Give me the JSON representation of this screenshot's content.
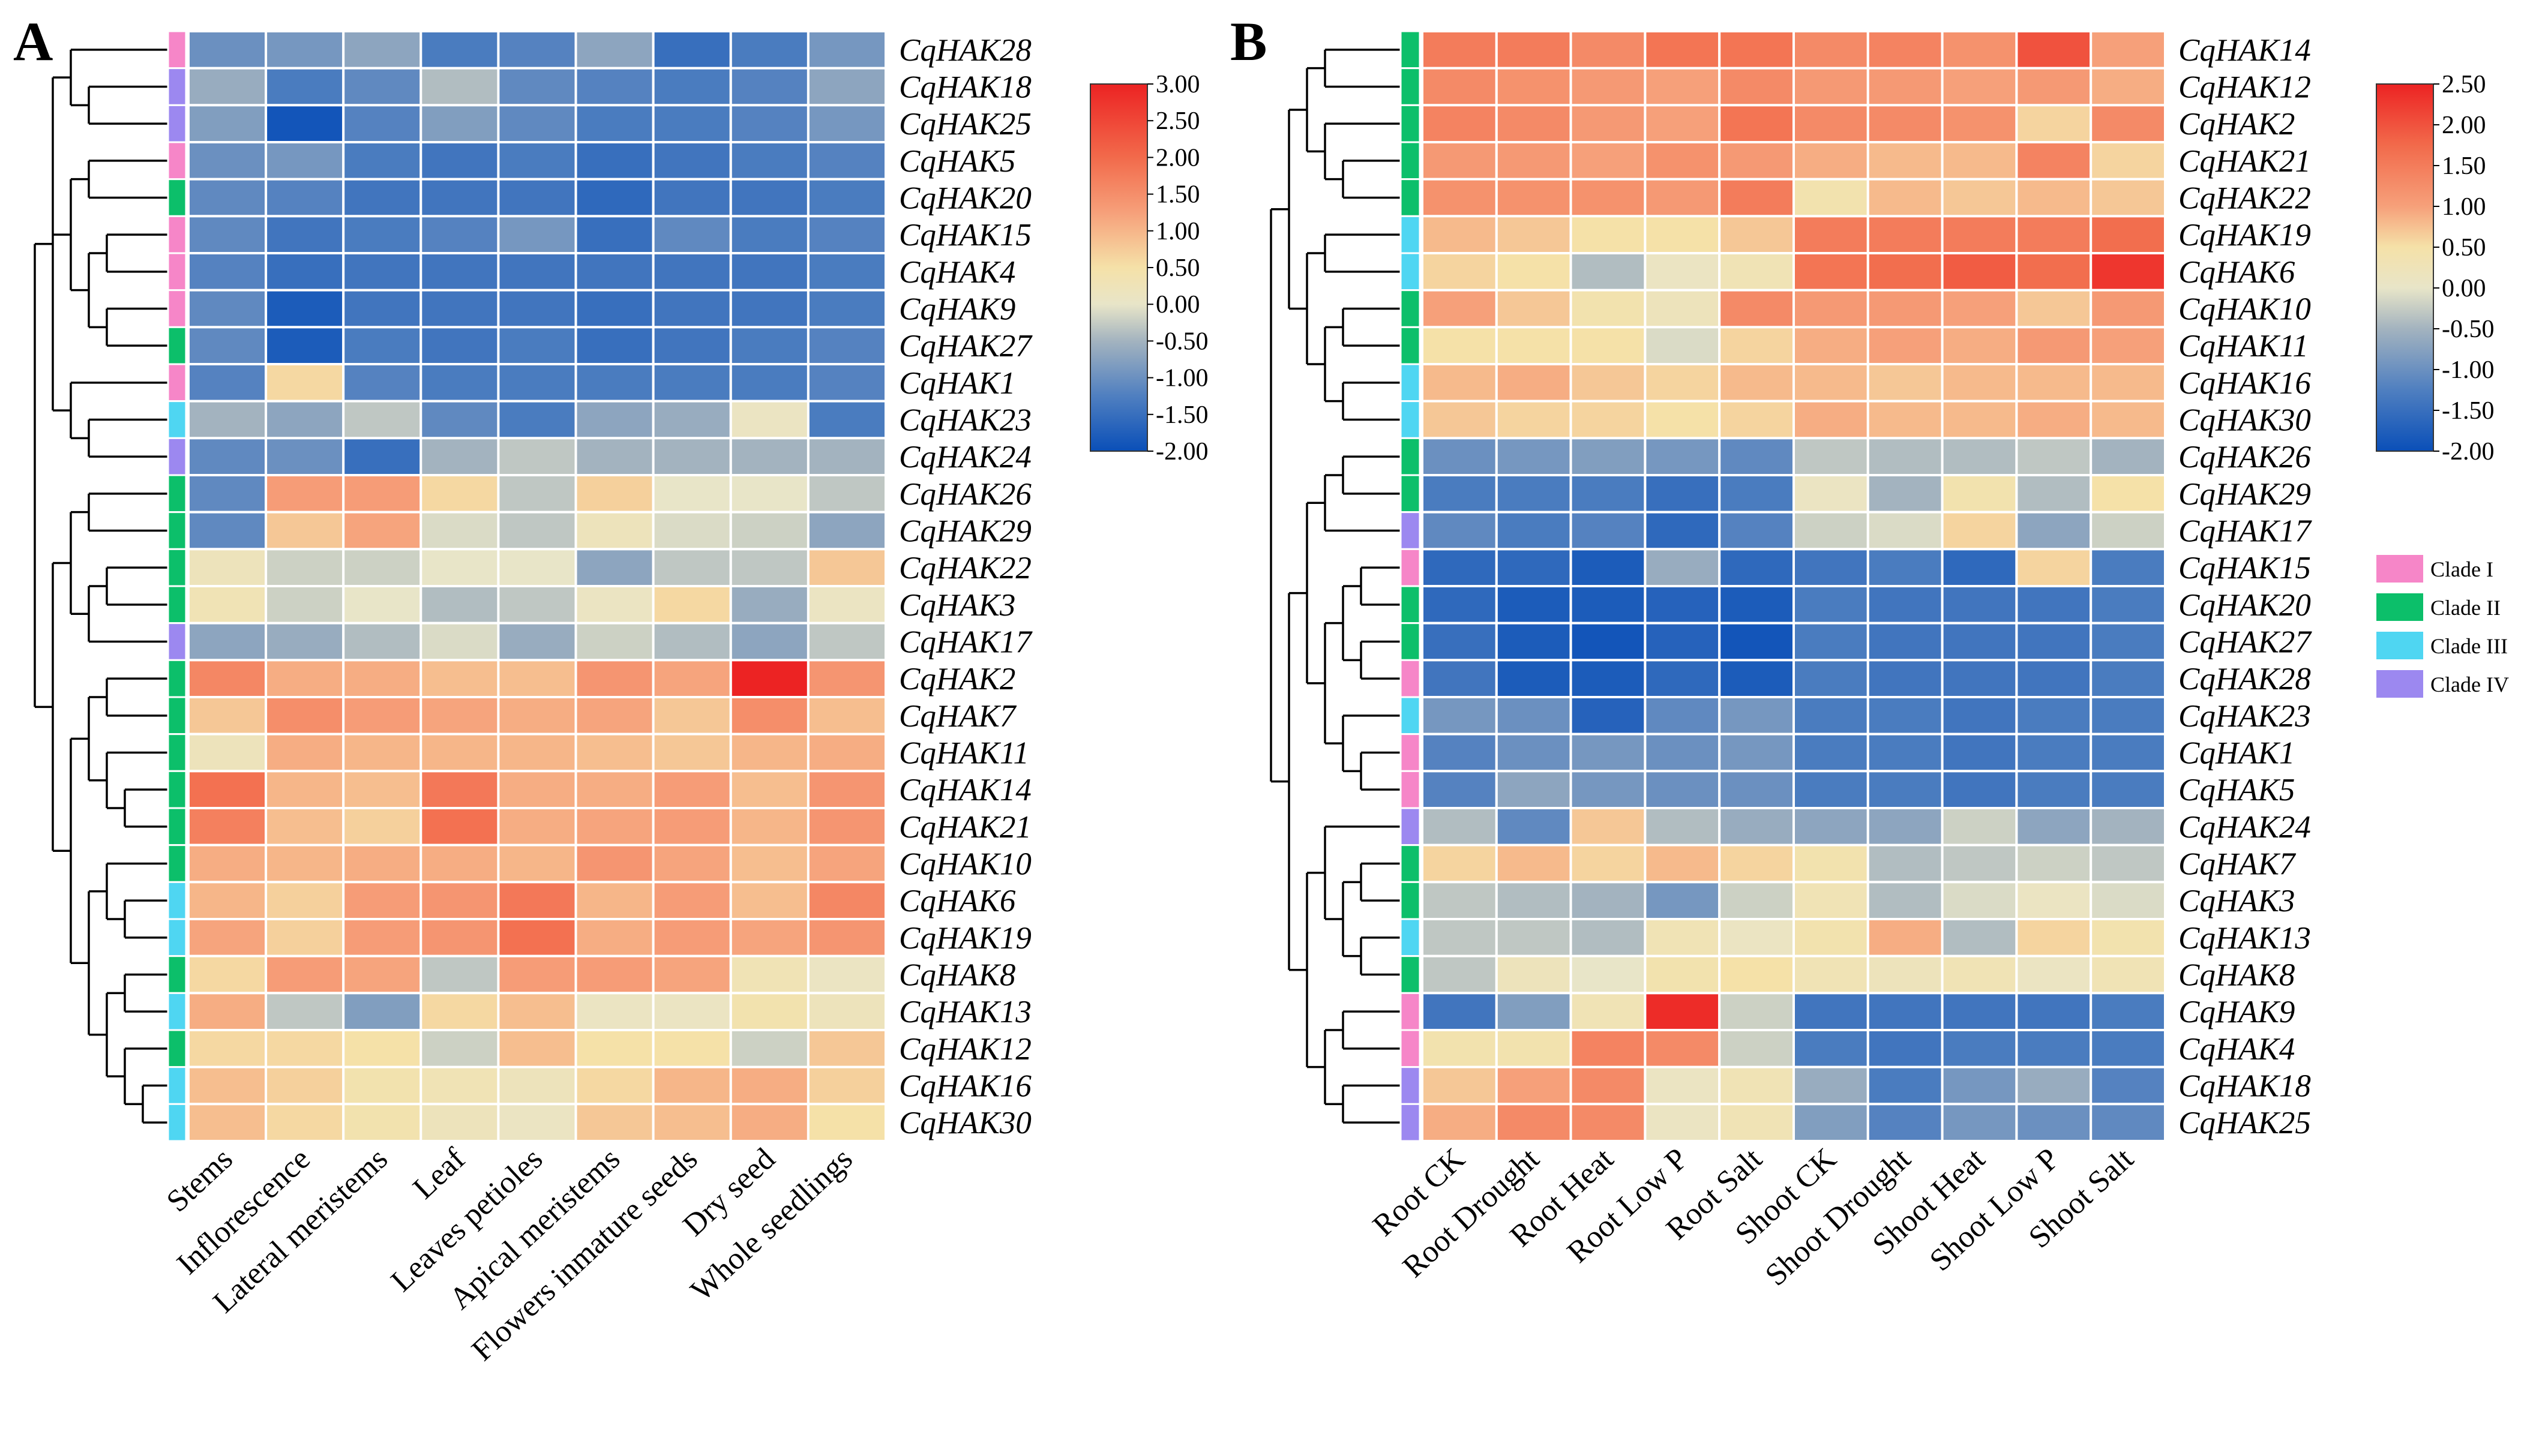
{
  "chart_data": [
    {
      "type": "heatmap",
      "panel": "A",
      "columns": [
        "Stems",
        "Inflorescence",
        "Lateral meristems",
        "Leaf",
        "Leaves petioles",
        "Apical meristems",
        "Flowers inmature seeds",
        "Dry seed",
        "Whole seedlings"
      ],
      "rows": [
        "CqHAK28",
        "CqHAK18",
        "CqHAK25",
        "CqHAK5",
        "CqHAK20",
        "CqHAK15",
        "CqHAK4",
        "CqHAK9",
        "CqHAK27",
        "CqHAK1",
        "CqHAK23",
        "CqHAK24",
        "CqHAK26",
        "CqHAK29",
        "CqHAK22",
        "CqHAK3",
        "CqHAK17",
        "CqHAK2",
        "CqHAK7",
        "CqHAK11",
        "CqHAK14",
        "CqHAK21",
        "CqHAK10",
        "CqHAK6",
        "CqHAK19",
        "CqHAK8",
        "CqHAK13",
        "CqHAK12",
        "CqHAK16",
        "CqHAK30"
      ],
      "clades": [
        "Clade I",
        "Clade IV",
        "Clade IV",
        "Clade I",
        "Clade II",
        "Clade I",
        "Clade I",
        "Clade I",
        "Clade II",
        "Clade I",
        "Clade III",
        "Clade IV",
        "Clade II",
        "Clade II",
        "Clade II",
        "Clade II",
        "Clade IV",
        "Clade II",
        "Clade II",
        "Clade II",
        "Clade II",
        "Clade II",
        "Clade II",
        "Clade III",
        "Clade III",
        "Clade II",
        "Clade III",
        "Clade II",
        "Clade III",
        "Clade III"
      ],
      "values": [
        [
          -1.0,
          -0.9,
          -0.7,
          -1.3,
          -1.2,
          -0.7,
          -1.5,
          -1.3,
          -0.9
        ],
        [
          -0.6,
          -1.3,
          -1.1,
          -0.4,
          -1.1,
          -1.2,
          -1.3,
          -1.2,
          -0.7
        ],
        [
          -0.8,
          -1.9,
          -1.2,
          -0.8,
          -1.1,
          -1.3,
          -1.3,
          -1.2,
          -0.9
        ],
        [
          -1.0,
          -0.9,
          -1.3,
          -1.4,
          -1.3,
          -1.5,
          -1.4,
          -1.3,
          -1.2
        ],
        [
          -1.1,
          -1.2,
          -1.4,
          -1.4,
          -1.4,
          -1.6,
          -1.4,
          -1.4,
          -1.3
        ],
        [
          -1.1,
          -1.4,
          -1.3,
          -1.2,
          -0.9,
          -1.5,
          -1.1,
          -1.3,
          -1.2
        ],
        [
          -1.2,
          -1.5,
          -1.4,
          -1.4,
          -1.4,
          -1.4,
          -1.4,
          -1.4,
          -1.3
        ],
        [
          -1.1,
          -1.8,
          -1.4,
          -1.4,
          -1.4,
          -1.5,
          -1.4,
          -1.4,
          -1.3
        ],
        [
          -1.1,
          -1.8,
          -1.3,
          -1.4,
          -1.3,
          -1.5,
          -1.4,
          -1.3,
          -1.2
        ],
        [
          -1.2,
          0.6,
          -1.2,
          -1.3,
          -1.3,
          -1.3,
          -1.3,
          -1.3,
          -1.2
        ],
        [
          -0.5,
          -0.7,
          -0.3,
          -1.1,
          -1.3,
          -0.7,
          -0.6,
          0.1,
          -1.3
        ],
        [
          -1.1,
          -1.0,
          -1.5,
          -0.5,
          -0.3,
          -0.5,
          -0.5,
          -0.5,
          -0.5
        ],
        [
          -1.1,
          1.3,
          1.3,
          0.6,
          -0.3,
          0.7,
          0.0,
          0.0,
          -0.3
        ],
        [
          -1.1,
          0.8,
          1.2,
          -0.1,
          -0.3,
          0.2,
          -0.1,
          -0.2,
          -0.7
        ],
        [
          0.2,
          -0.2,
          -0.2,
          0.0,
          0.0,
          -0.7,
          -0.3,
          -0.3,
          0.8
        ],
        [
          0.3,
          -0.2,
          0.0,
          -0.4,
          -0.3,
          0.1,
          0.6,
          -0.6,
          0.1
        ],
        [
          -0.7,
          -0.6,
          -0.4,
          -0.1,
          -0.6,
          -0.2,
          -0.4,
          -0.7,
          -0.3
        ],
        [
          1.6,
          1.1,
          1.1,
          0.9,
          0.9,
          1.4,
          1.2,
          3.0,
          1.4
        ],
        [
          0.8,
          1.5,
          1.3,
          1.2,
          1.1,
          1.2,
          0.8,
          1.5,
          0.9
        ],
        [
          0.2,
          1.1,
          1.0,
          1.0,
          1.0,
          0.9,
          0.8,
          1.0,
          1.1
        ],
        [
          1.9,
          1.0,
          0.9,
          1.8,
          1.1,
          1.1,
          1.3,
          0.9,
          1.4
        ],
        [
          1.7,
          0.9,
          0.7,
          1.9,
          1.1,
          1.2,
          1.3,
          1.0,
          1.4
        ],
        [
          1.1,
          1.0,
          1.1,
          1.1,
          1.0,
          1.4,
          1.2,
          0.9,
          1.2
        ],
        [
          1.0,
          0.7,
          1.3,
          1.4,
          1.8,
          1.0,
          1.3,
          0.9,
          1.6
        ],
        [
          1.2,
          0.7,
          1.3,
          1.4,
          1.9,
          1.1,
          1.3,
          1.2,
          1.4
        ],
        [
          0.6,
          1.3,
          1.2,
          -0.3,
          1.3,
          1.3,
          1.2,
          0.3,
          0.1
        ],
        [
          1.1,
          -0.3,
          -0.8,
          0.6,
          0.9,
          0.1,
          0.1,
          0.4,
          0.2
        ],
        [
          0.6,
          0.6,
          0.5,
          -0.2,
          0.9,
          0.5,
          0.5,
          -0.2,
          0.8
        ],
        [
          0.9,
          0.7,
          0.4,
          0.3,
          0.2,
          0.6,
          1.0,
          1.1,
          0.7
        ],
        [
          0.9,
          0.6,
          0.4,
          0.2,
          0.1,
          0.8,
          0.9,
          1.1,
          0.5
        ]
      ],
      "color_scale": {
        "min": -2.0,
        "max": 3.0,
        "ticks": [
          "3.00",
          "2.50",
          "2.00",
          "1.50",
          "1.00",
          "0.50",
          "0.00",
          "-0.50",
          "-1.00",
          "-1.50",
          "-2.00"
        ],
        "stops": [
          {
            "value": -2.0,
            "color": "#0a4fb8"
          },
          {
            "value": -1.25,
            "color": "#4f7fc0"
          },
          {
            "value": -0.5,
            "color": "#a3b3bf"
          },
          {
            "value": 0.0,
            "color": "#e8e5c8"
          },
          {
            "value": 0.5,
            "color": "#f5e1a8"
          },
          {
            "value": 1.25,
            "color": "#f6a07a"
          },
          {
            "value": 2.0,
            "color": "#f26a4b"
          },
          {
            "value": 3.0,
            "color": "#ec2323"
          }
        ]
      }
    },
    {
      "type": "heatmap",
      "panel": "B",
      "columns": [
        "Root CK",
        "Root Drought",
        "Root Heat",
        "Root Low P",
        "Root Salt",
        "Shoot CK",
        "Shoot Drought",
        "Shoot Heat",
        "Shoot Low P",
        "Shoot Salt"
      ],
      "rows": [
        "CqHAK14",
        "CqHAK12",
        "CqHAK2",
        "CqHAK21",
        "CqHAK22",
        "CqHAK19",
        "CqHAK6",
        "CqHAK10",
        "CqHAK11",
        "CqHAK16",
        "CqHAK30",
        "CqHAK26",
        "CqHAK29",
        "CqHAK17",
        "CqHAK15",
        "CqHAK20",
        "CqHAK27",
        "CqHAK28",
        "CqHAK23",
        "CqHAK1",
        "CqHAK5",
        "CqHAK24",
        "CqHAK7",
        "CqHAK3",
        "CqHAK13",
        "CqHAK8",
        "CqHAK9",
        "CqHAK4",
        "CqHAK18",
        "CqHAK25"
      ],
      "clades": [
        "Clade II",
        "Clade II",
        "Clade II",
        "Clade II",
        "Clade II",
        "Clade III",
        "Clade III",
        "Clade II",
        "Clade II",
        "Clade III",
        "Clade III",
        "Clade II",
        "Clade II",
        "Clade IV",
        "Clade I",
        "Clade II",
        "Clade II",
        "Clade I",
        "Clade III",
        "Clade I",
        "Clade I",
        "Clade IV",
        "Clade II",
        "Clade II",
        "Clade III",
        "Clade II",
        "Clade I",
        "Clade I",
        "Clade IV",
        "Clade IV"
      ],
      "values": [
        [
          1.5,
          1.5,
          1.3,
          1.6,
          1.6,
          1.3,
          1.4,
          1.2,
          2.0,
          1.0
        ],
        [
          1.3,
          1.2,
          1.1,
          1.0,
          1.3,
          1.1,
          1.1,
          1.0,
          1.1,
          0.9
        ],
        [
          1.4,
          1.3,
          1.1,
          1.0,
          1.6,
          1.3,
          1.3,
          1.2,
          0.6,
          1.3
        ],
        [
          1.1,
          1.1,
          1.0,
          1.2,
          1.1,
          0.9,
          0.8,
          0.8,
          1.4,
          0.6
        ],
        [
          1.2,
          1.2,
          1.2,
          1.1,
          1.5,
          0.4,
          0.8,
          0.7,
          0.8,
          0.7
        ],
        [
          0.8,
          0.7,
          0.5,
          0.5,
          0.7,
          1.5,
          1.5,
          1.5,
          1.5,
          1.7
        ],
        [
          0.6,
          0.5,
          -0.4,
          0.1,
          0.3,
          1.6,
          1.7,
          1.9,
          1.7,
          2.3
        ],
        [
          1.0,
          0.7,
          0.4,
          0.2,
          1.3,
          1.1,
          1.1,
          1.0,
          0.7,
          1.1
        ],
        [
          0.5,
          0.5,
          0.5,
          -0.1,
          0.6,
          0.9,
          1.0,
          0.9,
          1.1,
          1.0
        ],
        [
          0.8,
          0.9,
          0.7,
          0.6,
          0.8,
          0.8,
          0.7,
          0.8,
          0.8,
          0.8
        ],
        [
          0.7,
          0.6,
          0.6,
          0.5,
          0.6,
          0.9,
          0.8,
          0.8,
          0.9,
          0.8
        ],
        [
          -1.0,
          -0.9,
          -0.8,
          -0.9,
          -1.1,
          -0.3,
          -0.4,
          -0.4,
          -0.3,
          -0.5
        ],
        [
          -1.3,
          -1.3,
          -1.3,
          -1.5,
          -1.3,
          0.1,
          -0.5,
          0.4,
          -0.4,
          0.5
        ],
        [
          -1.1,
          -1.3,
          -1.2,
          -1.6,
          -1.2,
          -0.2,
          -0.1,
          0.6,
          -0.7,
          -0.2
        ],
        [
          -1.6,
          -1.6,
          -1.8,
          -0.6,
          -1.6,
          -1.4,
          -1.3,
          -1.6,
          0.6,
          -1.3
        ],
        [
          -1.6,
          -1.8,
          -1.8,
          -1.7,
          -1.8,
          -1.3,
          -1.4,
          -1.4,
          -1.4,
          -1.3
        ],
        [
          -1.5,
          -1.8,
          -1.9,
          -1.7,
          -1.9,
          -1.3,
          -1.4,
          -1.4,
          -1.4,
          -1.3
        ],
        [
          -1.4,
          -1.8,
          -1.8,
          -1.6,
          -1.8,
          -1.3,
          -1.4,
          -1.4,
          -1.4,
          -1.3
        ],
        [
          -0.9,
          -1.0,
          -1.7,
          -1.1,
          -0.9,
          -1.3,
          -1.3,
          -1.4,
          -1.3,
          -1.3
        ],
        [
          -1.2,
          -1.0,
          -0.9,
          -1.0,
          -0.9,
          -1.3,
          -1.3,
          -1.4,
          -1.3,
          -1.3
        ],
        [
          -1.2,
          -0.7,
          -0.9,
          -1.0,
          -1.0,
          -1.3,
          -1.3,
          -1.4,
          -1.3,
          -1.3
        ],
        [
          -0.4,
          -1.1,
          0.7,
          -0.4,
          -0.6,
          -0.7,
          -0.7,
          -0.2,
          -0.7,
          -0.5
        ],
        [
          0.6,
          0.8,
          0.6,
          0.8,
          0.6,
          0.4,
          -0.4,
          -0.3,
          -0.2,
          -0.3
        ],
        [
          -0.3,
          -0.4,
          -0.5,
          -0.9,
          -0.2,
          0.3,
          -0.4,
          -0.1,
          0.1,
          -0.1
        ],
        [
          -0.3,
          -0.3,
          -0.4,
          0.3,
          0.1,
          0.4,
          0.9,
          -0.4,
          0.6,
          0.4
        ],
        [
          -0.3,
          0.2,
          0.0,
          0.4,
          0.5,
          0.3,
          0.2,
          0.3,
          0.1,
          0.3
        ],
        [
          -1.4,
          -0.8,
          0.3,
          2.4,
          -0.2,
          -1.4,
          -1.4,
          -1.4,
          -1.4,
          -1.3
        ],
        [
          0.4,
          0.4,
          1.4,
          1.3,
          -0.2,
          -1.3,
          -1.4,
          -1.3,
          -1.3,
          -1.3
        ],
        [
          0.7,
          1.0,
          1.3,
          0.1,
          0.3,
          -0.6,
          -1.3,
          -0.9,
          -0.6,
          -1.2
        ],
        [
          0.9,
          1.3,
          1.3,
          0.1,
          0.3,
          -0.8,
          -1.2,
          -0.9,
          -1.0,
          -1.1
        ]
      ],
      "color_scale": {
        "min": -2.0,
        "max": 2.5,
        "ticks": [
          "2.50",
          "2.00",
          "1.50",
          "1.00",
          "0.50",
          "0.00",
          "-0.50",
          "-1.00",
          "-1.50",
          "-2.00"
        ],
        "stops": [
          {
            "value": -2.0,
            "color": "#0a4fb8"
          },
          {
            "value": -1.25,
            "color": "#4f7fc0"
          },
          {
            "value": -0.5,
            "color": "#a3b3bf"
          },
          {
            "value": 0.0,
            "color": "#e8e5c8"
          },
          {
            "value": 0.5,
            "color": "#f5e1a8"
          },
          {
            "value": 1.0,
            "color": "#f6a07a"
          },
          {
            "value": 1.75,
            "color": "#f26a4b"
          },
          {
            "value": 2.5,
            "color": "#ec2323"
          }
        ]
      }
    }
  ],
  "panel_labels": {
    "a": "A",
    "b": "B"
  },
  "legend": {
    "clades": [
      {
        "name": "Clade I",
        "color": "#f686c8"
      },
      {
        "name": "Clade II",
        "color": "#0cbf6a"
      },
      {
        "name": "Clade III",
        "color": "#4fd6f2"
      },
      {
        "name": "Clade IV",
        "color": "#9c88f0"
      }
    ]
  }
}
